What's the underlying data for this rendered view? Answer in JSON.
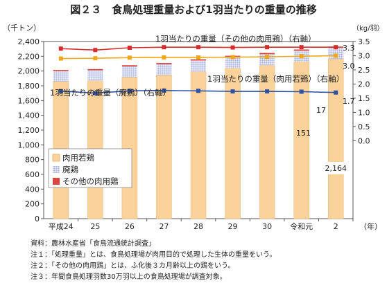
{
  "title": "図２３　食鳥処理重量および1羽当たりの重量の推移",
  "chart_data": {
    "type": "bar",
    "left_axis_unit": "（千トン）",
    "right_axis_unit": "（kg/羽）",
    "x_axis_unit": "（年）",
    "categories": [
      "平成24",
      "25",
      "26",
      "27",
      "28",
      "29",
      "30",
      "令和元",
      "2"
    ],
    "left_ylim": [
      0,
      2400
    ],
    "left_ticks": [
      "0",
      "200",
      "400",
      "600",
      "800",
      "1,000",
      "1,200",
      "1,400",
      "1,600",
      "1,800",
      "2,000",
      "2,200",
      "2,400"
    ],
    "right_ylim": [
      -2.75,
      3.5
    ],
    "right_ticks": [
      "0.0",
      "0.5",
      "1.0",
      "1.5",
      "2.0",
      "2.5",
      "3.0",
      "3.5"
    ],
    "stacked_series": [
      {
        "name": "肉用若鶏",
        "color": "#fbd29a",
        "values": [
          1858,
          1868,
          1918,
          1945,
          1993,
          2040,
          2077,
          2124,
          2164
        ]
      },
      {
        "name": "廃鶏",
        "color": "#d9ddf0",
        "values": [
          140,
          143,
          145,
          148,
          150,
          150,
          151,
          151,
          151
        ]
      },
      {
        "name": "その他の肉用鶏",
        "color": "#d9453f",
        "values": [
          16,
          16,
          16,
          16,
          16,
          17,
          17,
          17,
          17
        ]
      }
    ],
    "line_series": [
      {
        "name": "1羽当たりの重量（その他の肉用鶏）（右軸）",
        "color": "#d52b2b",
        "values": [
          3.25,
          3.2,
          3.28,
          3.3,
          3.3,
          3.29,
          3.3,
          3.3,
          3.3
        ]
      },
      {
        "name": "1羽当たりの重量（肉用若鶏）（右軸）",
        "color": "#f0a818",
        "values": [
          2.9,
          2.91,
          2.93,
          2.94,
          2.94,
          2.95,
          2.96,
          2.98,
          3.0
        ]
      },
      {
        "name": "1羽当たりの重量（廃鶏）（右軸）",
        "color": "#2e52a6",
        "values": [
          1.75,
          1.68,
          1.76,
          1.77,
          1.76,
          1.74,
          1.74,
          1.73,
          1.7
        ]
      }
    ],
    "labels": {
      "line_end_other": "3.3",
      "line_end_broiler": "3.0",
      "line_end_spent": "1.7",
      "last_other": "17",
      "last_spent": "151",
      "last_broiler": "2,164"
    },
    "legend_placement": "inside-left"
  },
  "notes": [
    "資料：農林水産省「食鳥流通統計調査」",
    "注１：「処理重量」とは、食鳥処理場が肉用目的で処理した生体の重量をいう。",
    "注２：「その他の肉用鶏」とは、ふ化後３カ月齢以上の鶏をいう。",
    "注３：年間食鳥処理羽数30万羽以上の食鳥処理場が調査対象。"
  ]
}
